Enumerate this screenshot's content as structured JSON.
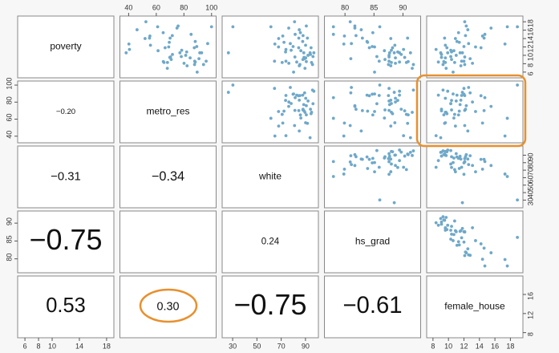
{
  "chart_data": {
    "type": "scatter-matrix",
    "point_color": "#6fa8c9",
    "variables": [
      {
        "name": "poverty",
        "lim": [
          5.4,
          18.6
        ],
        "xticks": [
          6,
          8,
          10,
          14,
          18
        ],
        "yticks": [
          6,
          8,
          10,
          12,
          14,
          16,
          18
        ],
        "values": [
          14.6,
          8.3,
          13.3,
          18.0,
          12.8,
          9.4,
          7.8,
          8.1,
          16.8,
          12.1,
          12.0,
          10.6,
          11.8,
          8.6,
          9.0,
          10.2,
          12.4,
          17.0,
          12.7,
          10.6,
          8.6,
          7.5,
          9.6,
          6.9,
          16.8,
          11.1,
          14.1,
          9.5,
          6.0,
          7.8,
          16.5,
          11.8,
          13.1,
          11.4,
          10.0,
          15.4,
          11.2,
          10.6,
          9.2,
          14.1,
          14.0,
          14.7,
          15.0,
          8.4,
          10.6,
          9.7,
          10.8,
          16.1,
          8.3,
          8.5
        ]
      },
      {
        "name": "metro_res",
        "lim": [
          36,
          101
        ],
        "xticks": [
          40,
          60,
          80,
          100
        ],
        "yticks": [
          40,
          60,
          80,
          100
        ],
        "values": [
          55.4,
          65.6,
          88.2,
          52.5,
          97.2,
          84.5,
          87.7,
          80.1,
          100,
          89.3,
          69.0,
          91.5,
          66.4,
          87.8,
          70.8,
          71.7,
          55.8,
          75.8,
          40.2,
          92.8,
          96.1,
          82.3,
          70.3,
          68.0,
          61.0,
          61.3,
          55.1,
          69.8,
          89.6,
          94.2,
          75.0,
          87.5,
          69.4,
          40.6,
          81.3,
          65.0,
          78.4,
          77.1,
          90.9,
          70.0,
          51.9,
          71.6,
          85.2,
          88.2,
          38.2,
          78.1,
          82.0,
          46.1,
          68.1,
          65.1
        ]
      },
      {
        "name": "white",
        "lim": [
          24,
          98
        ],
        "xticks": [
          30,
          50,
          70,
          90
        ],
        "yticks": [
          30,
          40,
          50,
          60,
          70,
          80,
          90
        ],
        "values": [
          71.3,
          70.8,
          87.7,
          81.0,
          77.5,
          90.2,
          85.4,
          76.3,
          30.2,
          79.8,
          67.8,
          26.5,
          94.6,
          73.9,
          87.9,
          94.1,
          90.1,
          90.7,
          64.8,
          96.9,
          64.5,
          84.9,
          81.3,
          89.6,
          61.5,
          86.2,
          91.6,
          88.8,
          80.2,
          95.8,
          76.2,
          84.4,
          72.3,
          73.9,
          92.1,
          85.8,
          78.2,
          88.6,
          89.3,
          84.5,
          67.9,
          88.0,
          81.5,
          82.8,
          93.8,
          96.2,
          73.6,
          84.9,
          95.0,
          90.7
        ]
      },
      {
        "name": "hs_grad",
        "lim": [
          77,
          92.5
        ],
        "xticks": [
          80,
          85,
          90
        ],
        "yticks": [
          80,
          85,
          90
        ],
        "values": [
          79.9,
          90.6,
          83.8,
          80.9,
          81.1,
          88.7,
          87.5,
          88.7,
          86.0,
          84.7,
          85.1,
          88.5,
          88.2,
          85.9,
          86.9,
          89.7,
          88.6,
          81.7,
          79.8,
          89.4,
          87.6,
          87.9,
          87.6,
          91.6,
          78.0,
          86.8,
          90.8,
          90.3,
          85.1,
          91.8,
          81.7,
          84.2,
          83.9,
          90.1,
          87.6,
          84.8,
          88.0,
          87.7,
          81.0,
          83.0,
          87.9,
          81.9,
          78.0,
          89.4,
          91.3,
          85.5,
          89.1,
          82.8,
          88.0,
          90.9
        ]
      },
      {
        "name": "female_house",
        "lim": [
          7.6,
          19.2
        ],
        "xticks": [
          8,
          10,
          12,
          14,
          16,
          18
        ],
        "yticks": [
          8,
          12,
          16
        ],
        "values": [
          14.4,
          10.8,
          11.1,
          12.1,
          12.6,
          9.6,
          12.1,
          13.1,
          18.9,
          12.0,
          13.5,
          11.8,
          9.8,
          11.7,
          10.4,
          9.1,
          9.6,
          12.3,
          17.3,
          9.9,
          12.0,
          11.6,
          12.1,
          9.7,
          17.6,
          10.7,
          9.5,
          9.1,
          10.6,
          9.3,
          15.5,
          14.2,
          11.4,
          8.4,
          11.0,
          11.3,
          10.3,
          11.5,
          12.8,
          14.6,
          10.9,
          12.2,
          14.7,
          8.7,
          9.0,
          10.3,
          10.4,
          12.5,
          9.6,
          9.4
        ]
      }
    ],
    "correlations": {
      "values": [
        -0.2,
        -0.31,
        -0.34,
        -0.75,
        null,
        0.24,
        0.53,
        0.3,
        -0.75,
        -0.61
      ],
      "value_labels": [
        "−0.20",
        "−0.31",
        "−0.34",
        "−0.75",
        null,
        "0.24",
        "0.53",
        "0.30",
        "−0.75",
        "−0.61"
      ]
    }
  }
}
